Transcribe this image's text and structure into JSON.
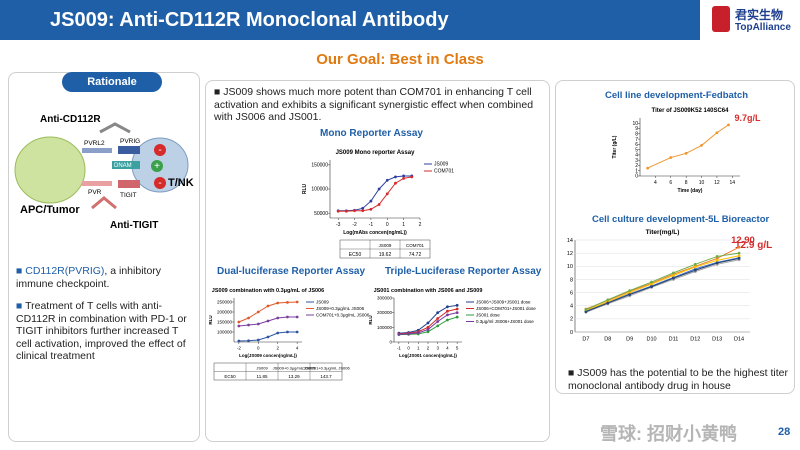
{
  "header": {
    "title": "JS009: Anti-CD112R Monoclonal Antibody",
    "logo_cn": "君实生物",
    "logo_en": "TopAlliance"
  },
  "goal": "Our Goal: Best in Class",
  "rationale": {
    "button": "Rationale",
    "diagram": {
      "anti_cd112r": "Anti-CD112R",
      "pvrl2": "PVRL2",
      "pvrig": "PVRIG",
      "dnam": "DNAM",
      "pvr": "PVR",
      "tigit": "TIGIT",
      "t_nk": "T/NK",
      "apc_tumor": "APC/Tumor",
      "anti_tigit": "Anti-TIGIT",
      "plus": "+",
      "minus": "-"
    },
    "bullets": [
      {
        "highlight": "CD112R(PVRIG)",
        "text": ", a inhibitory immune checkpoint."
      },
      {
        "text": "Treatment of T cells with anti-CD112R in combination with PD-1 or TIGIT inhibitors further increased T cell activation, improved the effect of clinical treatment"
      }
    ]
  },
  "middle": {
    "bullet": "JS009 shows much more potent than COM701 in enhancing T cell activation and exhibits a significant synergistic effect when combined with JS006 and JS001.",
    "headings": [
      "Mono Reporter Assay",
      "Dual-luciferase Reporter Assay",
      "Triple-Luciferase Reporter Assay"
    ]
  },
  "right": {
    "headings": [
      "Cell line development-Fedbatch",
      "Cell culture development-5L Bioreactor"
    ],
    "result": "12.9 g/L",
    "bullet": "JS009 has the potential  to be the highest titer monoclonal antibody drug in house"
  },
  "watermark": "雪球: 招财小黄鸭",
  "page_number": "28",
  "chart_data": [
    {
      "type": "line",
      "title": "JS009 Mono reporter Assay",
      "x_label": "Log(mAbs concen(ng/mL))",
      "y_label": "RLU",
      "x": [
        -3,
        -2.5,
        -2,
        -1.5,
        -1,
        -0.5,
        0,
        0.5,
        1,
        1.5
      ],
      "xlim": [
        -3.5,
        2
      ],
      "xticks": [
        -3,
        -2,
        -1,
        0,
        1,
        2
      ],
      "ylim": [
        40000,
        160000
      ],
      "yticks": [
        50000,
        100000,
        150000
      ],
      "legend": "right",
      "series": [
        {
          "name": "JS009",
          "color": "#2f3fa0",
          "values": [
            55000,
            55000,
            56000,
            60000,
            75000,
            100000,
            118000,
            125000,
            127000,
            127000
          ]
        },
        {
          "name": "COM701",
          "color": "#d62b2b",
          "values": [
            54000,
            54000,
            55000,
            55000,
            58000,
            68000,
            90000,
            112000,
            122000,
            125000
          ]
        }
      ],
      "ec50_table": {
        "header": [
          "JS009",
          "COM701"
        ],
        "rows": [
          [
            "EC50",
            "19.62",
            "74.72"
          ]
        ]
      }
    },
    {
      "type": "line",
      "title": "JS009 combination with 0.3μg/mL of JS006",
      "x_label": "Log(JS009 concen(ng/mL))",
      "y_label": "RLU",
      "x": [
        -2,
        -1,
        0,
        1,
        2,
        3,
        4
      ],
      "xlim": [
        -2.5,
        4.5
      ],
      "xticks": [
        -2,
        0,
        2,
        4
      ],
      "ylim": [
        50000,
        270000
      ],
      "yticks": [
        100000,
        150000,
        200000,
        250000
      ],
      "legend": "right",
      "series": [
        {
          "name": "JS009",
          "color": "#2f55a4",
          "values": [
            55000,
            56000,
            60000,
            75000,
            95000,
            100000,
            100000
          ]
        },
        {
          "name": "JS009+0.3μg/mL JS006",
          "color": "#e05a2b",
          "values": [
            150000,
            170000,
            200000,
            230000,
            245000,
            248000,
            250000
          ]
        },
        {
          "name": "COM701+0.3μg/mL JS006",
          "color": "#7b3f9e",
          "values": [
            130000,
            135000,
            140000,
            155000,
            170000,
            175000,
            175000
          ]
        }
      ],
      "ec50_table": {
        "header": [
          "JS009",
          "JS009+0.3μg/mL JS006",
          "COM701+0.3μg/mL JS006"
        ],
        "rows": [
          [
            "EC50",
            "11.85",
            "13.29",
            "143.7"
          ]
        ]
      }
    },
    {
      "type": "line",
      "title": "JS001 combination with JS006 and JS009",
      "x_label": "Log(JS001 concen(ng/mL))",
      "y_label": "RLU",
      "x": [
        -1,
        0,
        1,
        2,
        3,
        4,
        5
      ],
      "xlim": [
        -1.5,
        5.5
      ],
      "xticks": [
        -1,
        0,
        1,
        2,
        3,
        4,
        5
      ],
      "ylim": [
        0,
        300000
      ],
      "yticks": [
        0,
        100000,
        200000,
        300000
      ],
      "legend": "right",
      "series": [
        {
          "name": "JS006+JS009+JS001 dose",
          "color": "#1f3f8f",
          "values": [
            60000,
            65000,
            80000,
            130000,
            200000,
            240000,
            250000
          ]
        },
        {
          "name": "JS006+COM701+JS001 dose",
          "color": "#d02a2a",
          "values": [
            55000,
            60000,
            70000,
            100000,
            160000,
            210000,
            225000
          ]
        },
        {
          "name": "JS001 dose",
          "color": "#2a9d3a",
          "values": [
            50000,
            52000,
            55000,
            70000,
            110000,
            150000,
            170000
          ]
        },
        {
          "name": "0.3μg/ml JS006+JS001 dose",
          "color": "#7a3aa0",
          "values": [
            52000,
            55000,
            62000,
            85000,
            140000,
            185000,
            200000
          ]
        }
      ]
    },
    {
      "type": "line",
      "title": "Titer of JS009K52 140SC64",
      "x_label": "Time (day)",
      "y_label": "Titer (g/L)",
      "x": [
        3,
        6,
        8,
        10,
        12,
        13.5
      ],
      "xlim": [
        2,
        15
      ],
      "xticks": [
        4,
        6,
        8,
        10,
        12,
        14
      ],
      "ylim": [
        0,
        11
      ],
      "yticks": [
        0,
        1,
        2,
        3,
        4,
        5,
        6,
        7,
        8,
        9,
        10
      ],
      "annotation": "9.7g/L",
      "series": [
        {
          "color": "#f0962e",
          "values": [
            1.5,
            3.5,
            4.3,
            5.8,
            8.2,
            9.7
          ]
        }
      ]
    },
    {
      "type": "line",
      "title": "Titer(mg/L)",
      "categories": [
        "D7",
        "D8",
        "D9",
        "D10",
        "D11",
        "D12",
        "D13",
        "D14"
      ],
      "ylim": [
        0,
        14
      ],
      "yticks": [
        0,
        2,
        4,
        6,
        8,
        10,
        12,
        14
      ],
      "grid": true,
      "annotation": "12.90",
      "series": [
        {
          "color": "#4472c4",
          "values": [
            3.2,
            4.5,
            5.8,
            7.0,
            8.3,
            9.6,
            10.6,
            11.3
          ]
        },
        {
          "color": "#ed7d31",
          "values": [
            3.5,
            4.8,
            6.2,
            7.4,
            8.8,
            10.0,
            11.2,
            12.9
          ]
        },
        {
          "color": "#a5a5a5",
          "values": [
            3.0,
            4.3,
            5.5,
            6.8,
            8.0,
            9.2,
            10.3,
            11.0
          ]
        },
        {
          "color": "#ffc000",
          "values": [
            3.3,
            4.6,
            6.0,
            7.3,
            8.6,
            9.9,
            10.9,
            11.6
          ]
        },
        {
          "color": "#264478",
          "values": [
            3.1,
            4.4,
            5.7,
            6.9,
            8.2,
            9.4,
            10.5,
            11.2
          ]
        },
        {
          "color": "#70ad47",
          "values": [
            3.4,
            4.9,
            6.3,
            7.6,
            9.0,
            10.3,
            11.5,
            12.0
          ]
        }
      ]
    }
  ]
}
